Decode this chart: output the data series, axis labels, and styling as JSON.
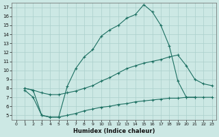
{
  "xlabel": "Humidex (Indice chaleur)",
  "bg_color": "#cce8e4",
  "line_color": "#1a6e60",
  "grid_color": "#aacfcb",
  "xlim": [
    -0.5,
    23.5
  ],
  "ylim": [
    4.5,
    17.5
  ],
  "xticks": [
    0,
    1,
    2,
    3,
    4,
    5,
    6,
    7,
    8,
    9,
    10,
    11,
    12,
    13,
    14,
    15,
    16,
    17,
    18,
    19,
    20,
    21,
    22,
    23
  ],
  "yticks": [
    5,
    6,
    7,
    8,
    9,
    10,
    11,
    12,
    13,
    14,
    15,
    16,
    17
  ],
  "line_top_x": [
    1,
    2,
    3,
    4,
    5,
    6,
    7,
    8,
    9,
    10,
    11,
    12,
    13,
    14,
    15,
    16,
    17,
    18,
    19,
    20,
    21
  ],
  "line_top_y": [
    8.0,
    7.8,
    5.0,
    4.8,
    4.8,
    8.2,
    10.2,
    11.5,
    12.3,
    13.8,
    14.5,
    15.0,
    15.8,
    16.2,
    17.3,
    16.5,
    15.0,
    12.7,
    8.8,
    7.0,
    7.0
  ],
  "line_mid_x": [
    1,
    2,
    3,
    4,
    5,
    6,
    7,
    8,
    9,
    10,
    11,
    12,
    13,
    14,
    15,
    16,
    17,
    18,
    19,
    20,
    21,
    22,
    23
  ],
  "line_mid_y": [
    8.0,
    7.8,
    7.5,
    7.3,
    7.3,
    7.5,
    7.7,
    8.0,
    8.3,
    8.8,
    9.2,
    9.7,
    10.2,
    10.5,
    10.8,
    11.0,
    11.2,
    11.5,
    11.7,
    10.5,
    9.0,
    8.5,
    8.3
  ],
  "line_bot_x": [
    1,
    2,
    3,
    4,
    5,
    6,
    7,
    8,
    9,
    10,
    11,
    12,
    13,
    14,
    15,
    16,
    17,
    18,
    19,
    20,
    21,
    22,
    23
  ],
  "line_bot_y": [
    7.8,
    7.0,
    5.0,
    4.8,
    4.8,
    5.0,
    5.2,
    5.5,
    5.7,
    5.9,
    6.0,
    6.2,
    6.3,
    6.5,
    6.6,
    6.7,
    6.8,
    6.9,
    6.9,
    7.0,
    7.0,
    7.0,
    7.0
  ]
}
